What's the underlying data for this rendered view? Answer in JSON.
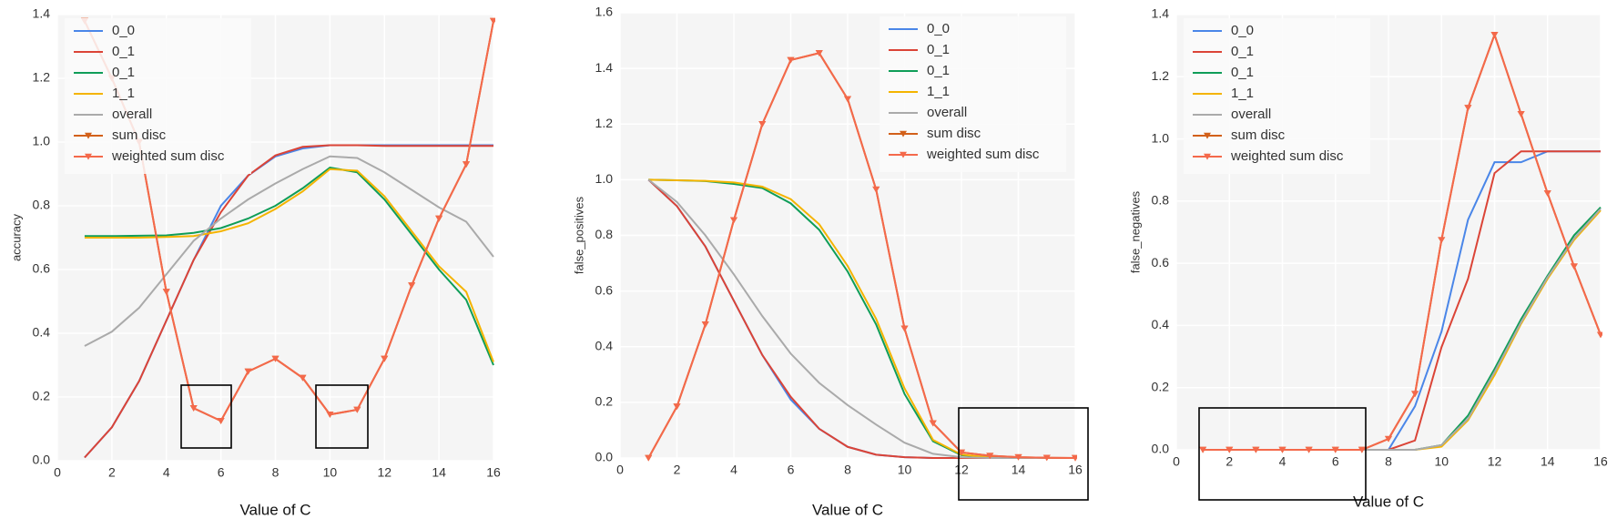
{
  "chart_data": [
    {
      "type": "line",
      "xlabel": "Value of C",
      "ylabel": "accuracy",
      "x": [
        1,
        2,
        3,
        4,
        5,
        6,
        7,
        8,
        9,
        10,
        11,
        12,
        13,
        14,
        15,
        16
      ],
      "xlim": [
        0,
        16
      ],
      "xticks": [
        0,
        2,
        4,
        6,
        8,
        10,
        12,
        14,
        16
      ],
      "ylim": [
        0,
        1.4
      ],
      "yticks": [
        {
          "value": 0,
          "label": "0.0"
        },
        {
          "value": 0.2,
          "label": "0.2"
        },
        {
          "value": 0.4,
          "label": "0.4"
        },
        {
          "value": 0.6,
          "label": "0.6"
        },
        {
          "value": 0.8,
          "label": "0.8"
        },
        {
          "value": 1,
          "label": "1.0"
        },
        {
          "value": 1.2,
          "label": "1.2"
        },
        {
          "value": 1.4,
          "label": "1.4"
        }
      ],
      "grid": true,
      "legend": "upper left",
      "series": [
        {
          "name": "0_0",
          "color": "#4a86e8",
          "values": [
            0.01,
            0.105,
            0.25,
            0.44,
            0.63,
            0.8,
            0.895,
            0.955,
            0.98,
            0.99,
            0.99,
            0.99,
            0.99,
            0.99,
            0.99,
            0.99
          ]
        },
        {
          "name": "0_1",
          "color": "#db4437",
          "values": [
            0.01,
            0.105,
            0.25,
            0.44,
            0.63,
            0.78,
            0.895,
            0.958,
            0.985,
            0.99,
            0.99,
            0.988,
            0.988,
            0.988,
            0.988,
            0.988
          ]
        },
        {
          "name": "0_1",
          "color": "#0f9d58",
          "values": [
            0.705,
            0.705,
            0.706,
            0.707,
            0.715,
            0.73,
            0.76,
            0.8,
            0.855,
            0.92,
            0.905,
            0.82,
            0.71,
            0.6,
            0.505,
            0.3
          ]
        },
        {
          "name": "1_1",
          "color": "#f4b400",
          "values": [
            0.7,
            0.7,
            0.7,
            0.702,
            0.705,
            0.72,
            0.745,
            0.79,
            0.845,
            0.915,
            0.91,
            0.83,
            0.72,
            0.61,
            0.53,
            0.31
          ]
        },
        {
          "name": "overall",
          "color": "#aaaaaa",
          "values": [
            0.36,
            0.405,
            0.48,
            0.585,
            0.69,
            0.76,
            0.82,
            0.87,
            0.915,
            0.955,
            0.95,
            0.905,
            0.85,
            0.795,
            0.75,
            0.64
          ]
        },
        {
          "name": "sum disc",
          "color": "#d2601a",
          "marker": "v",
          "values": [
            1.38,
            1.2,
            1.0,
            0.53,
            0.165,
            0.125,
            0.28,
            0.32,
            0.26,
            0.145,
            0.16,
            0.32,
            0.55,
            0.76,
            0.93,
            1.38
          ]
        },
        {
          "name": "weighted sum disc",
          "color": "#f4694b",
          "marker": "v",
          "values": [
            1.38,
            1.2,
            1.0,
            0.53,
            0.165,
            0.125,
            0.28,
            0.32,
            0.26,
            0.145,
            0.16,
            0.32,
            0.55,
            0.76,
            0.93,
            1.38
          ]
        }
      ]
    },
    {
      "type": "line",
      "xlabel": "Value of C",
      "ylabel": "false_positives",
      "x": [
        1,
        2,
        3,
        4,
        5,
        6,
        7,
        8,
        9,
        10,
        11,
        12,
        13,
        14,
        15,
        16
      ],
      "xlim": [
        0,
        16
      ],
      "xticks": [
        0,
        2,
        4,
        6,
        8,
        10,
        12,
        14,
        16
      ],
      "ylim": [
        0,
        1.6
      ],
      "yticks": [
        {
          "value": 0,
          "label": "0.0"
        },
        {
          "value": 0.2,
          "label": "0.2"
        },
        {
          "value": 0.4,
          "label": "0.4"
        },
        {
          "value": 0.6,
          "label": "0.6"
        },
        {
          "value": 0.8,
          "label": "0.8"
        },
        {
          "value": 1,
          "label": "1.0"
        },
        {
          "value": 1.2,
          "label": "1.2"
        },
        {
          "value": 1.4,
          "label": "1.4"
        },
        {
          "value": 1.6,
          "label": "1.6"
        }
      ],
      "grid": true,
      "legend": "upper right",
      "series": [
        {
          "name": "0_0",
          "color": "#4a86e8",
          "values": [
            1.0,
            0.905,
            0.76,
            0.565,
            0.37,
            0.21,
            0.105,
            0.04,
            0.012,
            0.003,
            0,
            0,
            0,
            0,
            0,
            0
          ]
        },
        {
          "name": "0_1",
          "color": "#db4437",
          "values": [
            1.0,
            0.905,
            0.76,
            0.565,
            0.37,
            0.22,
            0.105,
            0.04,
            0.012,
            0.003,
            0,
            0,
            0,
            0,
            0,
            0
          ]
        },
        {
          "name": "0_1",
          "color": "#0f9d58",
          "values": [
            1.0,
            0.998,
            0.995,
            0.985,
            0.97,
            0.915,
            0.82,
            0.67,
            0.48,
            0.23,
            0.06,
            0.01,
            0.002,
            0,
            0,
            0
          ]
        },
        {
          "name": "1_1",
          "color": "#f4b400",
          "values": [
            1.0,
            0.998,
            0.996,
            0.99,
            0.975,
            0.93,
            0.84,
            0.69,
            0.5,
            0.25,
            0.065,
            0.012,
            0.002,
            0,
            0,
            0
          ]
        },
        {
          "name": "overall",
          "color": "#aaaaaa",
          "values": [
            1.0,
            0.92,
            0.8,
            0.66,
            0.51,
            0.375,
            0.27,
            0.19,
            0.12,
            0.055,
            0.015,
            0.003,
            0,
            0,
            0,
            0
          ]
        },
        {
          "name": "sum disc",
          "color": "#d2601a",
          "marker": "v",
          "values": [
            0,
            0.185,
            0.48,
            0.855,
            1.2,
            1.43,
            1.455,
            1.29,
            0.965,
            0.465,
            0.125,
            0.02,
            0.008,
            0.003,
            0.001,
            0
          ]
        },
        {
          "name": "weighted sum disc",
          "color": "#f4694b",
          "marker": "v",
          "values": [
            0,
            0.185,
            0.48,
            0.855,
            1.2,
            1.43,
            1.455,
            1.29,
            0.965,
            0.465,
            0.125,
            0.02,
            0.008,
            0.003,
            0.001,
            0
          ]
        }
      ]
    },
    {
      "type": "line",
      "xlabel": "Value of C",
      "ylabel": "false_negatives",
      "x": [
        1,
        2,
        3,
        4,
        5,
        6,
        7,
        8,
        9,
        10,
        11,
        12,
        13,
        14,
        15,
        16
      ],
      "xlim": [
        0,
        16
      ],
      "xticks": [
        0,
        2,
        4,
        6,
        8,
        10,
        12,
        14,
        16
      ],
      "ylim": [
        0,
        1.4
      ],
      "yticks": [
        {
          "value": 0,
          "label": "0.0"
        },
        {
          "value": 0.2,
          "label": "0.2"
        },
        {
          "value": 0.4,
          "label": "0.4"
        },
        {
          "value": 0.6,
          "label": "0.6"
        },
        {
          "value": 0.8,
          "label": "0.8"
        },
        {
          "value": 1,
          "label": "1.0"
        },
        {
          "value": 1.2,
          "label": "1.2"
        },
        {
          "value": 1.4,
          "label": "1.4"
        }
      ],
      "grid": true,
      "legend": "upper left",
      "series": [
        {
          "name": "0_0",
          "color": "#4a86e8",
          "values": [
            0,
            0,
            0,
            0,
            0,
            0,
            0,
            0,
            0.14,
            0.38,
            0.74,
            0.925,
            0.925,
            0.96,
            0.96,
            0.96
          ]
        },
        {
          "name": "0_1",
          "color": "#db4437",
          "values": [
            0,
            0,
            0,
            0,
            0,
            0,
            0,
            0,
            0.03,
            0.33,
            0.55,
            0.89,
            0.96,
            0.96,
            0.96,
            0.96
          ]
        },
        {
          "name": "0_1",
          "color": "#0f9d58",
          "values": [
            0,
            0,
            0,
            0,
            0,
            0,
            0,
            0,
            0,
            0.015,
            0.11,
            0.26,
            0.42,
            0.56,
            0.69,
            0.78
          ]
        },
        {
          "name": "1_1",
          "color": "#f4b400",
          "values": [
            0,
            0,
            0,
            0,
            0,
            0,
            0,
            0,
            0,
            0.01,
            0.095,
            0.24,
            0.405,
            0.55,
            0.675,
            0.77
          ]
        },
        {
          "name": "overall",
          "color": "#aaaaaa",
          "values": [
            0,
            0,
            0,
            0,
            0,
            0,
            0,
            0,
            0,
            0.015,
            0.1,
            0.25,
            0.41,
            0.555,
            0.68,
            0.775
          ]
        },
        {
          "name": "sum disc",
          "color": "#d2601a",
          "marker": "v",
          "values": [
            0,
            0,
            0,
            0,
            0,
            0,
            0,
            0.035,
            0.18,
            0.675,
            1.1,
            1.335,
            1.08,
            0.825,
            0.59,
            0.37
          ]
        },
        {
          "name": "weighted sum disc",
          "color": "#f4694b",
          "marker": "v",
          "values": [
            0,
            0,
            0,
            0,
            0,
            0,
            0,
            0.035,
            0.18,
            0.675,
            1.1,
            1.335,
            1.08,
            0.825,
            0.59,
            0.37
          ]
        }
      ]
    }
  ]
}
